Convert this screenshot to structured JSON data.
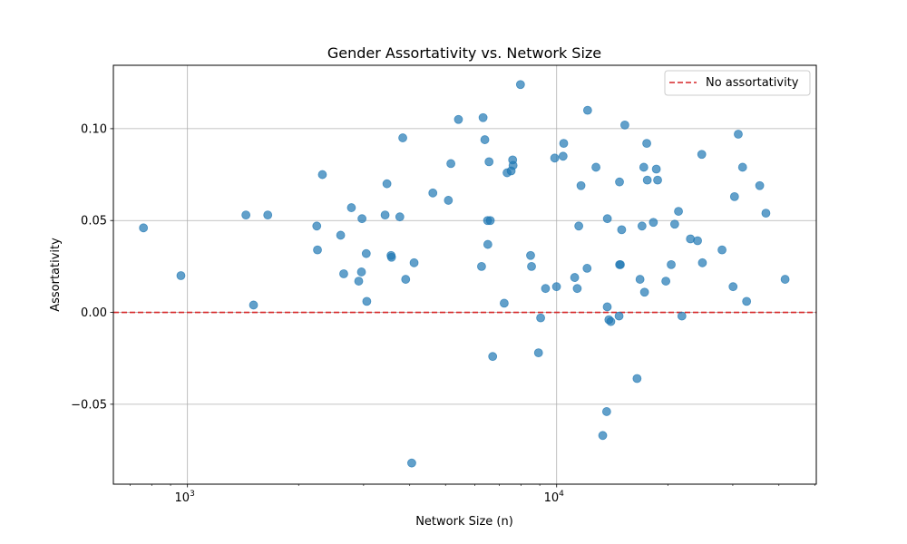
{
  "chart_data": {
    "type": "scatter",
    "title": "Gender Assortativity vs. Network Size",
    "xlabel": "Network Size (n)",
    "ylabel": "Assortativity",
    "xscale": "log",
    "xlim": [
      630,
      50500
    ],
    "ylim": [
      -0.0935,
      0.1345
    ],
    "grid": true,
    "x_ticks": [
      {
        "value": 1000,
        "base": "10",
        "exp": "3"
      },
      {
        "value": 10000,
        "base": "10",
        "exp": "4"
      }
    ],
    "y_ticks": [
      {
        "value": -0.05,
        "label": "−0.05"
      },
      {
        "value": 0.0,
        "label": "0.00"
      },
      {
        "value": 0.05,
        "label": "0.05"
      },
      {
        "value": 0.1,
        "label": "0.10"
      }
    ],
    "marker_color": "#1f77b4",
    "reference_line": {
      "y": 0,
      "color": "#d62728",
      "style": "dashed",
      "label": "No assortativity"
    },
    "legend_position": "top-right",
    "points": [
      {
        "x": 760,
        "y": 0.046
      },
      {
        "x": 960,
        "y": 0.02
      },
      {
        "x": 1440,
        "y": 0.053
      },
      {
        "x": 1510,
        "y": 0.004
      },
      {
        "x": 1650,
        "y": 0.053
      },
      {
        "x": 2240,
        "y": 0.047
      },
      {
        "x": 2250,
        "y": 0.034
      },
      {
        "x": 2320,
        "y": 0.075
      },
      {
        "x": 2600,
        "y": 0.042
      },
      {
        "x": 2650,
        "y": 0.021
      },
      {
        "x": 2780,
        "y": 0.057
      },
      {
        "x": 2910,
        "y": 0.017
      },
      {
        "x": 2960,
        "y": 0.022
      },
      {
        "x": 2970,
        "y": 0.051
      },
      {
        "x": 3050,
        "y": 0.032
      },
      {
        "x": 3060,
        "y": 0.006
      },
      {
        "x": 3430,
        "y": 0.053
      },
      {
        "x": 3470,
        "y": 0.07
      },
      {
        "x": 3560,
        "y": 0.031
      },
      {
        "x": 3570,
        "y": 0.03
      },
      {
        "x": 3760,
        "y": 0.052
      },
      {
        "x": 3830,
        "y": 0.095
      },
      {
        "x": 3900,
        "y": 0.018
      },
      {
        "x": 4050,
        "y": -0.082
      },
      {
        "x": 4110,
        "y": 0.027
      },
      {
        "x": 4620,
        "y": 0.065
      },
      {
        "x": 5090,
        "y": 0.061
      },
      {
        "x": 5170,
        "y": 0.081
      },
      {
        "x": 5420,
        "y": 0.105
      },
      {
        "x": 6260,
        "y": 0.025
      },
      {
        "x": 6320,
        "y": 0.106
      },
      {
        "x": 6390,
        "y": 0.094
      },
      {
        "x": 6500,
        "y": 0.05
      },
      {
        "x": 6510,
        "y": 0.037
      },
      {
        "x": 6560,
        "y": 0.082
      },
      {
        "x": 6610,
        "y": 0.05
      },
      {
        "x": 6710,
        "y": -0.024
      },
      {
        "x": 7210,
        "y": 0.005
      },
      {
        "x": 7340,
        "y": 0.076
      },
      {
        "x": 7530,
        "y": 0.077
      },
      {
        "x": 7600,
        "y": 0.083
      },
      {
        "x": 7620,
        "y": 0.08
      },
      {
        "x": 7980,
        "y": 0.124
      },
      {
        "x": 8500,
        "y": 0.031
      },
      {
        "x": 8550,
        "y": 0.025
      },
      {
        "x": 8930,
        "y": -0.022
      },
      {
        "x": 9050,
        "y": -0.003
      },
      {
        "x": 9330,
        "y": 0.013
      },
      {
        "x": 9880,
        "y": 0.084
      },
      {
        "x": 9990,
        "y": 0.014
      },
      {
        "x": 10410,
        "y": 0.085
      },
      {
        "x": 10450,
        "y": 0.092
      },
      {
        "x": 11190,
        "y": 0.019
      },
      {
        "x": 11370,
        "y": 0.013
      },
      {
        "x": 11480,
        "y": 0.047
      },
      {
        "x": 11640,
        "y": 0.069
      },
      {
        "x": 12090,
        "y": 0.024
      },
      {
        "x": 12130,
        "y": 0.11
      },
      {
        "x": 12780,
        "y": 0.079
      },
      {
        "x": 13330,
        "y": -0.067
      },
      {
        "x": 13660,
        "y": -0.054
      },
      {
        "x": 13710,
        "y": 0.003
      },
      {
        "x": 13720,
        "y": 0.051
      },
      {
        "x": 13850,
        "y": -0.004
      },
      {
        "x": 14020,
        "y": -0.005
      },
      {
        "x": 14760,
        "y": -0.002
      },
      {
        "x": 14800,
        "y": 0.071
      },
      {
        "x": 14810,
        "y": 0.026
      },
      {
        "x": 14880,
        "y": 0.026
      },
      {
        "x": 15000,
        "y": 0.045
      },
      {
        "x": 15300,
        "y": 0.102
      },
      {
        "x": 16510,
        "y": -0.036
      },
      {
        "x": 16820,
        "y": 0.018
      },
      {
        "x": 17030,
        "y": 0.047
      },
      {
        "x": 17220,
        "y": 0.079
      },
      {
        "x": 17300,
        "y": 0.011
      },
      {
        "x": 17540,
        "y": 0.092
      },
      {
        "x": 17600,
        "y": 0.072
      },
      {
        "x": 18280,
        "y": 0.049
      },
      {
        "x": 18620,
        "y": 0.078
      },
      {
        "x": 18770,
        "y": 0.072
      },
      {
        "x": 19760,
        "y": 0.017
      },
      {
        "x": 20430,
        "y": 0.026
      },
      {
        "x": 20880,
        "y": 0.048
      },
      {
        "x": 21380,
        "y": 0.055
      },
      {
        "x": 21840,
        "y": -0.002
      },
      {
        "x": 23030,
        "y": 0.04
      },
      {
        "x": 24080,
        "y": 0.039
      },
      {
        "x": 24720,
        "y": 0.086
      },
      {
        "x": 24820,
        "y": 0.027
      },
      {
        "x": 28050,
        "y": 0.034
      },
      {
        "x": 30050,
        "y": 0.014
      },
      {
        "x": 30320,
        "y": 0.063
      },
      {
        "x": 31040,
        "y": 0.097
      },
      {
        "x": 31890,
        "y": 0.079
      },
      {
        "x": 32700,
        "y": 0.006
      },
      {
        "x": 35480,
        "y": 0.069
      },
      {
        "x": 36880,
        "y": 0.054
      },
      {
        "x": 41570,
        "y": 0.018
      }
    ]
  }
}
